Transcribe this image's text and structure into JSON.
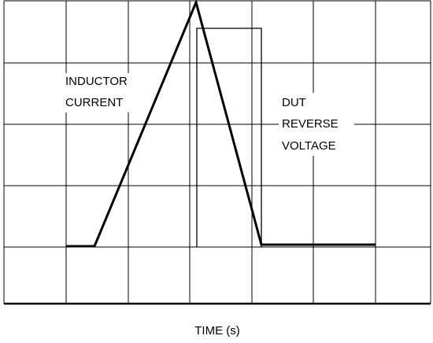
{
  "annotations": [
    {
      "lines": [
        "INDUCTOR",
        "CURRENT"
      ]
    },
    {
      "lines": [
        "DUT",
        "REVERSE",
        "VOLTAGE"
      ]
    }
  ],
  "x_axis_label": "TIME (s)"
}
